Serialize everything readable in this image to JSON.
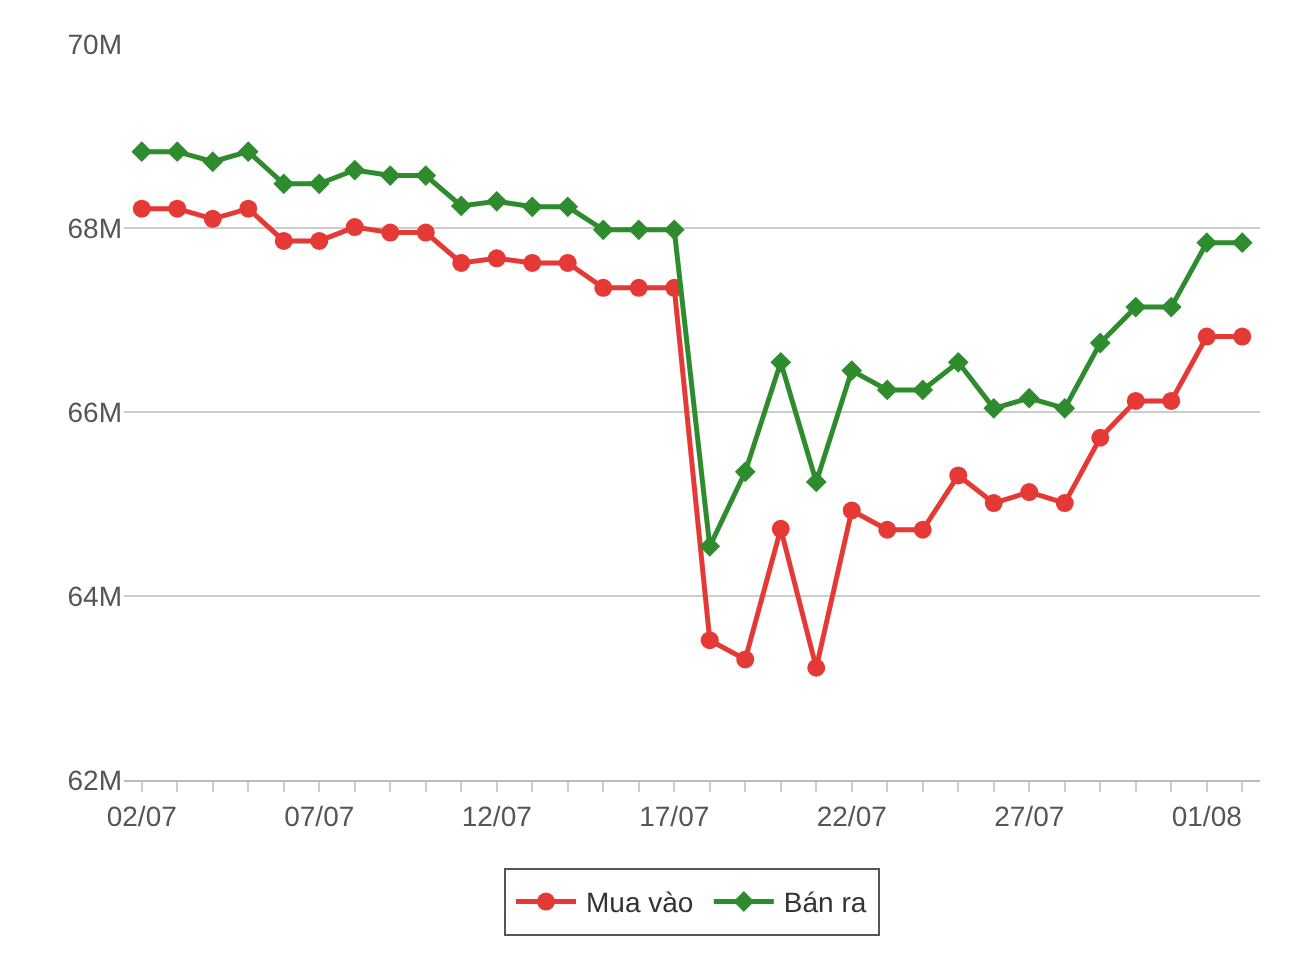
{
  "chart_data": {
    "type": "line",
    "categories": [
      "02/07",
      null,
      null,
      null,
      null,
      "07/07",
      null,
      null,
      null,
      null,
      "12/07",
      null,
      null,
      null,
      null,
      "17/07",
      null,
      null,
      null,
      null,
      "22/07",
      null,
      null,
      null,
      null,
      "27/07",
      null,
      null,
      null,
      null,
      "01/08",
      null
    ],
    "series": [
      {
        "name": "Mua vào",
        "color": "#e53935",
        "marker": "circle",
        "values": [
          68210000,
          68210000,
          68100000,
          68210000,
          67860000,
          67860000,
          68010000,
          67950000,
          67950000,
          67620000,
          67670000,
          67620000,
          67620000,
          67350000,
          67350000,
          67350000,
          63520000,
          63310000,
          64730000,
          63220000,
          64930000,
          64720000,
          64720000,
          65310000,
          65010000,
          65130000,
          65010000,
          65720000,
          66120000,
          66120000,
          66820000,
          66820000
        ]
      },
      {
        "name": "Bán ra",
        "color": "#2e8b2e",
        "marker": "diamond",
        "values": [
          68830000,
          68830000,
          68720000,
          68830000,
          68480000,
          68480000,
          68630000,
          68570000,
          68570000,
          68240000,
          68290000,
          68230000,
          68230000,
          67980000,
          67980000,
          67980000,
          64540000,
          65350000,
          66540000,
          65240000,
          66450000,
          66240000,
          66240000,
          66540000,
          66040000,
          66150000,
          66040000,
          66750000,
          67140000,
          67140000,
          67840000,
          67840000
        ]
      }
    ],
    "ylim": [
      62000000,
      70000000
    ],
    "yticks": [
      {
        "value": 62000000,
        "label": "62M"
      },
      {
        "value": 64000000,
        "label": "64M"
      },
      {
        "value": 66000000,
        "label": "66M"
      },
      {
        "value": 68000000,
        "label": "68M"
      },
      {
        "value": 70000000,
        "label": "70M"
      }
    ],
    "grid": "y",
    "legend": "bottom",
    "line_style": "solid"
  }
}
